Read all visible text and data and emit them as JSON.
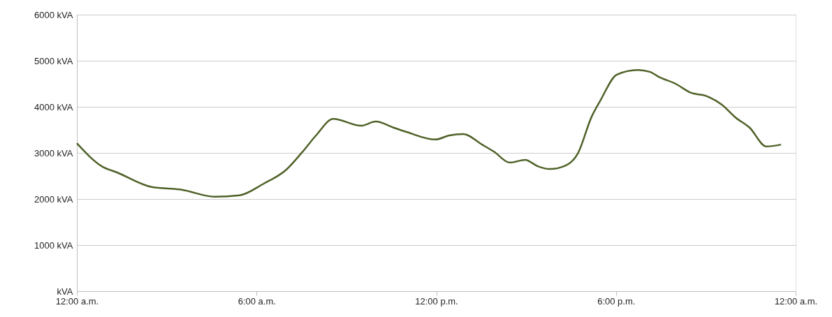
{
  "chart_data": {
    "type": "line",
    "x": [
      0,
      0.86,
      1.33,
      2.5,
      3.5,
      4.6,
      5.43,
      6.23,
      7.0,
      7.53,
      8.0,
      8.56,
      9.49,
      9.98,
      10.57,
      11.03,
      11.97,
      12.43,
      12.9,
      13.53,
      13.92,
      14.46,
      14.97,
      15.39,
      15.79,
      16.33,
      16.72,
      17.19,
      17.49,
      18.03,
      18.73,
      19.13,
      19.43,
      19.99,
      20.52,
      20.99,
      21.53,
      21.99,
      22.46,
      23.02,
      23.51
    ],
    "series": [
      {
        "color": "#4f6228",
        "values": [
          3210,
          2700,
          2580,
          2260,
          2200,
          2050,
          2080,
          2330,
          2640,
          3020,
          3390,
          3740,
          3590,
          3680,
          3550,
          3450,
          3290,
          3380,
          3410,
          3180,
          3030,
          2790,
          2850,
          2710,
          2650,
          2730,
          2980,
          3790,
          4150,
          4700,
          4800,
          4760,
          4650,
          4500,
          4300,
          4240,
          4050,
          3770,
          3550,
          3140,
          3180
        ]
      }
    ],
    "xlim": [
      0,
      24
    ],
    "xticks": [
      {
        "value": 0,
        "label": "12:00 a.m."
      },
      {
        "value": 6,
        "label": "6:00 a.m."
      },
      {
        "value": 12,
        "label": "12:00 p.m."
      },
      {
        "value": 18,
        "label": "6:00 p.m."
      },
      {
        "value": 24,
        "label": "12:00 a.m."
      }
    ],
    "ylim": [
      0,
      6000
    ],
    "yticks": [
      {
        "value": 0,
        "label": "kVA"
      },
      {
        "value": 1000,
        "label": "1000 kVA"
      },
      {
        "value": 2000,
        "label": "2000 kVA"
      },
      {
        "value": 3000,
        "label": "3000 kVA"
      },
      {
        "value": 4000,
        "label": "4000 kVA"
      },
      {
        "value": 5000,
        "label": "5000 kVA"
      },
      {
        "value": 6000,
        "label": "6000 kVA"
      }
    ],
    "grid": "y",
    "marker": "none",
    "line_style": "solid"
  }
}
